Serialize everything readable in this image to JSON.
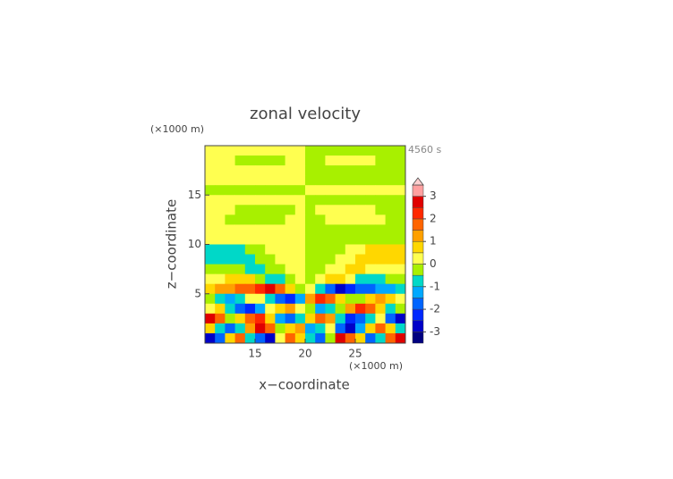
{
  "chart_data": {
    "type": "contour",
    "title": "zonal velocity",
    "time_label": "4560 s",
    "x_label": "x−coordinate",
    "y_label": "z−coordinate",
    "x_unit": "(×1000 m)",
    "y_unit": "(×1000 m)",
    "xlim": [
      10,
      30
    ],
    "ylim": [
      0,
      20
    ],
    "xticks": [
      15,
      20,
      25
    ],
    "yticks": [
      5,
      10,
      15
    ],
    "x": [
      10.5,
      11.5,
      12.5,
      13.5,
      14.5,
      15.5,
      16.5,
      17.5,
      18.5,
      19.5,
      20.5,
      21.5,
      22.5,
      23.5,
      24.5,
      25.5,
      26.5,
      27.5,
      28.5,
      29.5
    ],
    "y": [
      19.5,
      18.5,
      17.5,
      16.5,
      15.5,
      14.5,
      13.5,
      12.5,
      11.5,
      10.5,
      9.5,
      8.5,
      7.5,
      6.5,
      5.5,
      4.5,
      3.5,
      2.5,
      1.5,
      0.5
    ],
    "z": [
      [
        0.2,
        0.2,
        0.2,
        0.2,
        0.2,
        0.2,
        0.2,
        0.2,
        0.2,
        0.2,
        -0.2,
        -0.2,
        -0.2,
        -0.2,
        -0.2,
        -0.2,
        -0.2,
        -0.2,
        -0.2,
        -0.2
      ],
      [
        0.2,
        0.2,
        0.2,
        -0.2,
        -0.2,
        -0.2,
        -0.2,
        -0.2,
        0.2,
        0.2,
        -0.2,
        -0.2,
        0.2,
        0.2,
        0.2,
        0.2,
        0.2,
        -0.2,
        -0.2,
        -0.2
      ],
      [
        0.2,
        0.2,
        0.2,
        0.2,
        0.2,
        0.2,
        0.2,
        0.2,
        0.2,
        0.2,
        -0.2,
        -0.2,
        -0.2,
        -0.2,
        -0.2,
        -0.2,
        -0.2,
        -0.2,
        -0.2,
        -0.2
      ],
      [
        0.2,
        0.2,
        0.2,
        0.2,
        0.2,
        0.2,
        0.2,
        0.2,
        0.2,
        0.2,
        -0.2,
        -0.2,
        -0.2,
        -0.2,
        -0.2,
        -0.2,
        -0.2,
        -0.2,
        -0.2,
        -0.2
      ],
      [
        -0.2,
        -0.2,
        -0.2,
        -0.2,
        -0.2,
        -0.2,
        -0.2,
        -0.2,
        -0.2,
        -0.2,
        0.2,
        0.2,
        0.2,
        0.2,
        0.2,
        0.2,
        0.2,
        0.2,
        0.2,
        0.2
      ],
      [
        0.2,
        0.2,
        0.2,
        0.2,
        0.2,
        0.2,
        0.2,
        0.2,
        0.2,
        0.2,
        -0.2,
        -0.2,
        -0.2,
        -0.2,
        -0.2,
        -0.2,
        -0.2,
        -0.2,
        -0.2,
        -0.2
      ],
      [
        0.2,
        0.2,
        0.2,
        -0.2,
        -0.2,
        -0.2,
        -0.2,
        -0.2,
        -0.2,
        0.2,
        -0.2,
        0.2,
        0.2,
        0.2,
        0.2,
        0.2,
        0.2,
        -0.2,
        -0.2,
        -0.2
      ],
      [
        0.2,
        0.2,
        -0.2,
        -0.2,
        -0.2,
        -0.2,
        -0.2,
        -0.2,
        0.2,
        0.2,
        -0.2,
        -0.2,
        0.2,
        0.2,
        0.2,
        0.2,
        0.2,
        0.2,
        -0.2,
        -0.2
      ],
      [
        0.2,
        0.2,
        0.2,
        0.2,
        0.2,
        0.2,
        0.2,
        0.2,
        0.2,
        0.2,
        -0.2,
        -0.2,
        -0.2,
        -0.2,
        -0.2,
        -0.2,
        -0.2,
        -0.2,
        -0.2,
        -0.2
      ],
      [
        0.2,
        0.2,
        0.2,
        0.2,
        0.2,
        0.2,
        0.2,
        0.2,
        0.2,
        0.2,
        -0.2,
        -0.2,
        -0.2,
        -0.2,
        -0.2,
        -0.2,
        -0.2,
        -0.2,
        -0.2,
        -0.2
      ],
      [
        -0.7,
        -0.7,
        -0.7,
        -0.7,
        -0.2,
        -0.2,
        0.2,
        0.2,
        0.2,
        0.2,
        -0.2,
        -0.2,
        -0.2,
        -0.2,
        0.2,
        0.2,
        0.7,
        0.7,
        0.7,
        0.7
      ],
      [
        -0.7,
        -0.7,
        -0.7,
        -0.7,
        -0.7,
        -0.2,
        -0.2,
        0.2,
        0.2,
        0.2,
        -0.2,
        -0.2,
        -0.2,
        0.2,
        0.2,
        0.7,
        0.7,
        0.7,
        0.7,
        0.7
      ],
      [
        -0.2,
        -0.2,
        -0.2,
        -0.2,
        -0.7,
        -0.7,
        -0.2,
        -0.2,
        0.2,
        0.2,
        -0.2,
        -0.2,
        0.2,
        0.2,
        0.7,
        0.7,
        0.2,
        0.2,
        0.2,
        0.2
      ],
      [
        0.2,
        0.2,
        0.7,
        0.7,
        0.7,
        -0.2,
        -0.7,
        -0.7,
        -0.2,
        0.2,
        -0.2,
        0.2,
        0.7,
        0.7,
        0.2,
        -0.7,
        -0.7,
        -0.7,
        -0.2,
        -0.2
      ],
      [
        0.7,
        1.2,
        1.2,
        1.7,
        1.7,
        2.2,
        2.7,
        1.7,
        0.7,
        -0.2,
        0.2,
        -0.7,
        -1.7,
        -2.7,
        -2.2,
        -1.7,
        -1.7,
        -1.2,
        -1.2,
        -0.7
      ],
      [
        -0.2,
        -0.7,
        -1.2,
        -0.7,
        0.2,
        0.2,
        -0.7,
        -1.7,
        -2.2,
        -1.2,
        1.2,
        2.2,
        1.7,
        0.7,
        -0.2,
        -0.2,
        0.7,
        1.2,
        0.7,
        0.2
      ],
      [
        0.2,
        0.7,
        -0.7,
        -1.7,
        -2.2,
        -1.2,
        0.2,
        0.7,
        1.2,
        0.2,
        -0.2,
        -1.2,
        -0.7,
        -0.2,
        1.2,
        2.2,
        1.7,
        0.7,
        -0.7,
        -0.2
      ],
      [
        2.7,
        1.7,
        -0.2,
        0.7,
        1.7,
        2.2,
        0.7,
        -1.2,
        -1.7,
        -0.7,
        0.7,
        1.7,
        1.2,
        -0.7,
        -2.2,
        -1.7,
        -0.7,
        0.2,
        -1.7,
        -2.7
      ],
      [
        0.7,
        -0.7,
        -1.7,
        -0.7,
        1.2,
        2.7,
        1.7,
        -0.2,
        0.7,
        1.2,
        -1.2,
        -0.7,
        0.2,
        -1.7,
        -2.7,
        -1.2,
        0.7,
        1.7,
        0.7,
        -0.7
      ],
      [
        -2.7,
        -1.7,
        0.7,
        1.7,
        -0.7,
        -1.7,
        -2.7,
        0.2,
        1.7,
        0.7,
        -0.7,
        -1.7,
        -0.2,
        2.7,
        1.7,
        0.7,
        -1.7,
        -0.7,
        1.7,
        2.7
      ]
    ],
    "levels": [
      -3.5,
      -3,
      -2.5,
      -2,
      -1.5,
      -1,
      -0.5,
      0,
      0.5,
      1,
      1.5,
      2,
      2.5,
      3,
      3.5
    ],
    "colors": [
      "#000080",
      "#0000c8",
      "#0028ff",
      "#0064ff",
      "#00a8ff",
      "#00d8c8",
      "#a8f000",
      "#ffff50",
      "#ffd700",
      "#ffa000",
      "#ff6400",
      "#ff2800",
      "#e00000",
      "#ffa0a0"
    ],
    "over_color": "#ffd0d0",
    "cticks": [
      -3,
      -2,
      -1,
      0,
      1,
      2,
      3
    ]
  }
}
